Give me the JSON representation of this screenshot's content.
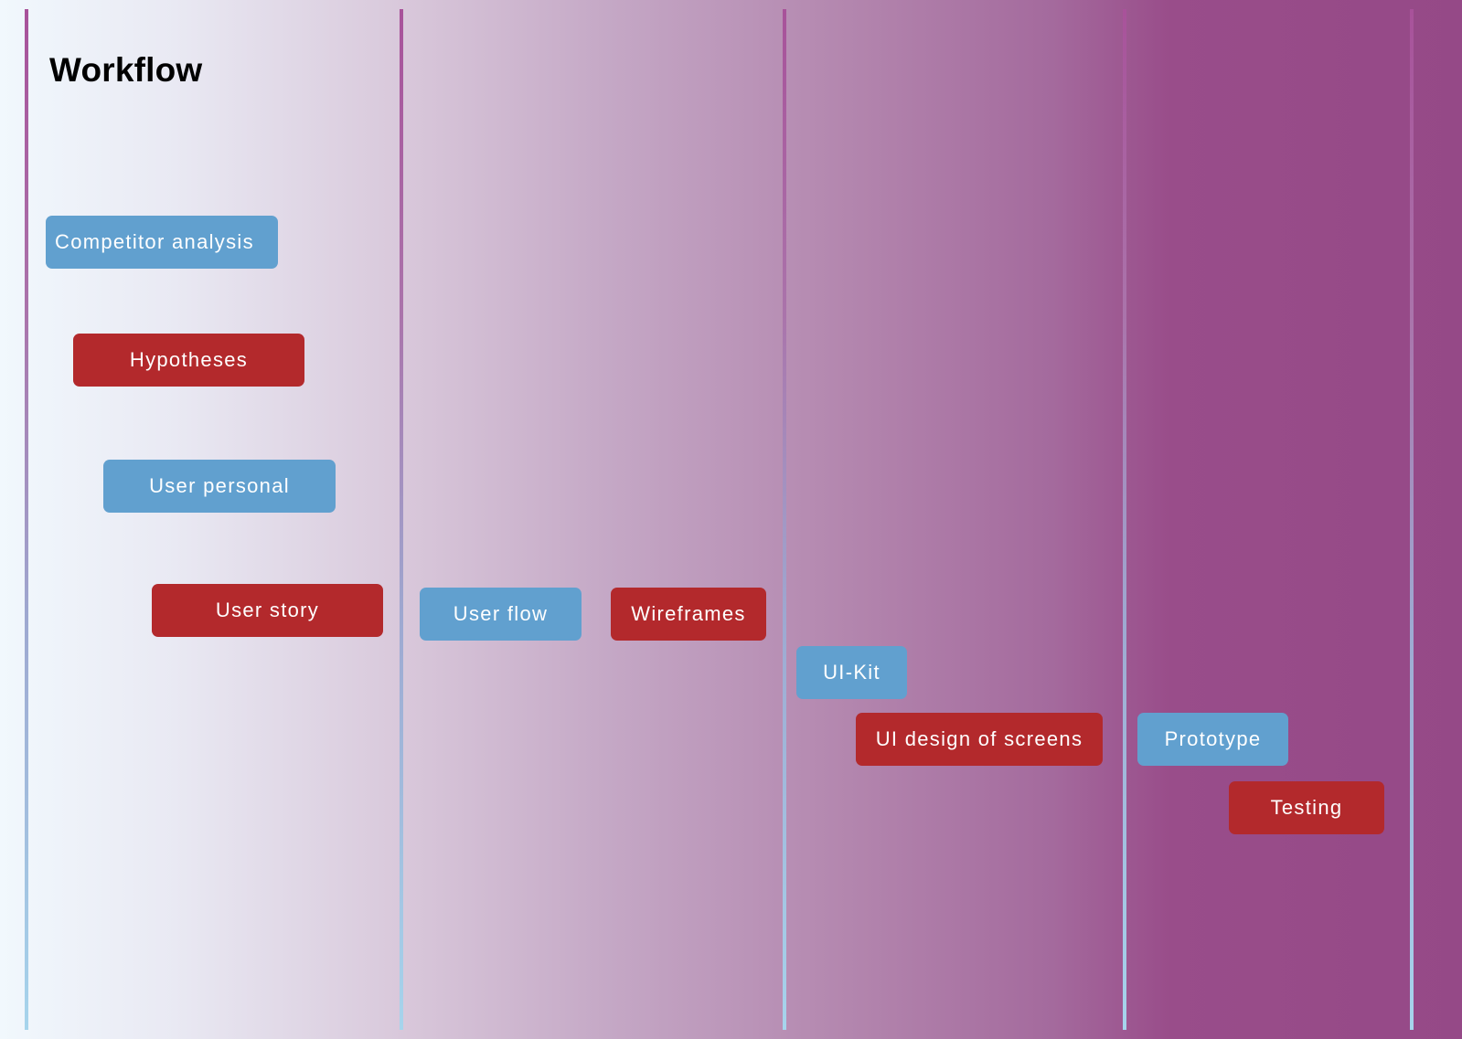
{
  "title": "Workflow",
  "colors": {
    "research_task": "#61a0cf",
    "design_task": "#b3292c",
    "divider": "#a8529a",
    "background_start": "#f1f8fd",
    "background_end": "#954987"
  },
  "tasks": [
    {
      "label": "Competitor analysis",
      "color": "blue"
    },
    {
      "label": "Hypotheses",
      "color": "red"
    },
    {
      "label": "User personal",
      "color": "blue"
    },
    {
      "label": "User story",
      "color": "red"
    },
    {
      "label": "User flow",
      "color": "blue"
    },
    {
      "label": "Wireframes",
      "color": "red"
    },
    {
      "label": "UI-Kit",
      "color": "blue"
    },
    {
      "label": "UI design of screens",
      "color": "red"
    },
    {
      "label": "Prototype",
      "color": "blue"
    },
    {
      "label": "Testing",
      "color": "red"
    }
  ]
}
